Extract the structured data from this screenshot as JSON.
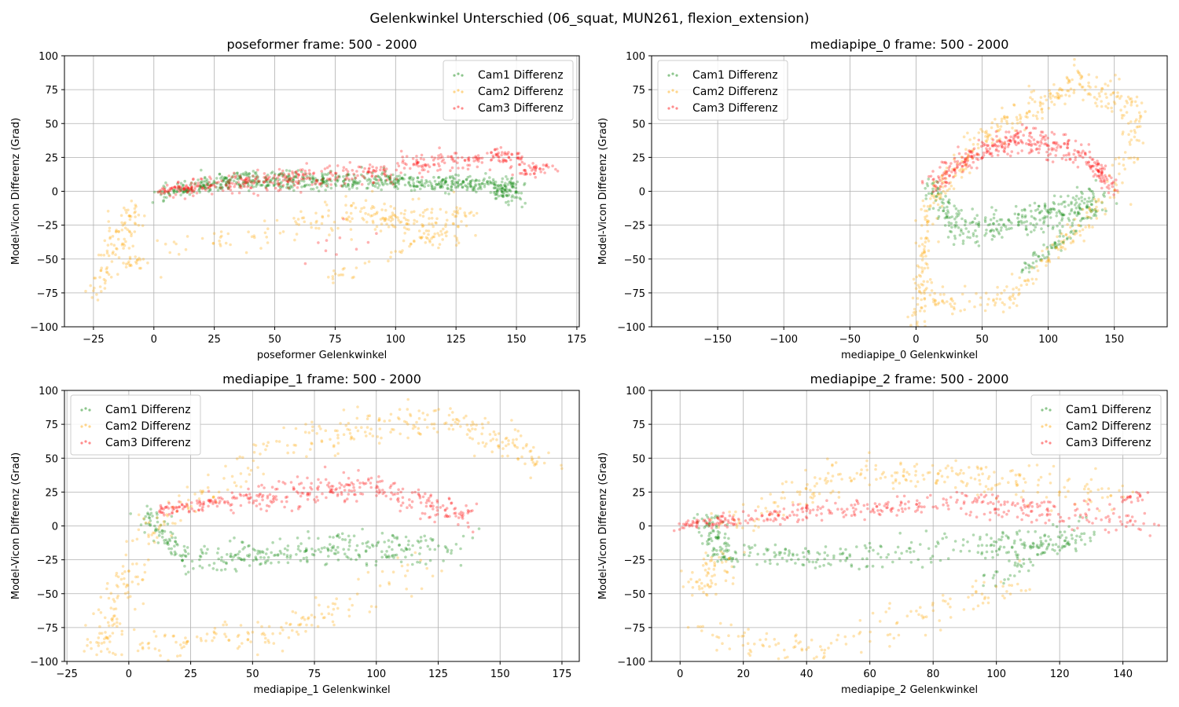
{
  "figure": {
    "suptitle": "Gelenkwinkel Unterschied (06_squat, MUN261, flexion_extension)"
  },
  "chart_data": [
    {
      "type": "scatter",
      "title": "poseformer frame: 500 - 2000",
      "xlabel": "poseformer Gelenkwinkel",
      "ylabel": "Model-Vicon Differenz (Grad)",
      "xlim": [
        -37,
        176
      ],
      "ylim": [
        -100,
        100
      ],
      "xticks": [
        -25,
        0,
        25,
        50,
        75,
        100,
        125,
        150,
        175
      ],
      "yticks": [
        -100,
        -75,
        -50,
        -25,
        0,
        25,
        50,
        75,
        100
      ],
      "grid": true,
      "legend": "top-right",
      "series": [
        {
          "name": "Cam1 Differenz",
          "color": "#008000",
          "segments": [
            {
              "from": [
                2,
                -1
              ],
              "to": [
                40,
                10
              ],
              "spread": 3,
              "n": 160
            },
            {
              "from": [
                40,
                10
              ],
              "to": [
                100,
                8
              ],
              "spread": 3,
              "n": 200
            },
            {
              "from": [
                100,
                8
              ],
              "to": [
                150,
                5
              ],
              "spread": 3,
              "n": 180
            },
            {
              "from": [
                140,
                2
              ],
              "to": [
                150,
                -3
              ],
              "spread": 3,
              "n": 60
            },
            {
              "from": [
                20,
                5
              ],
              "to": [
                130,
                3
              ],
              "spread": 2,
              "n": 120
            }
          ]
        },
        {
          "name": "Cam2 Differenz",
          "color": "#ffa500",
          "segments": [
            {
              "from": [
                -26,
                -78
              ],
              "to": [
                -15,
                -40
              ],
              "spread": 4,
              "n": 40
            },
            {
              "from": [
                -15,
                -40
              ],
              "to": [
                -8,
                -10
              ],
              "spread": 5,
              "n": 60
            },
            {
              "from": [
                -15,
                -55
              ],
              "to": [
                -5,
                -50
              ],
              "spread": 3,
              "n": 20
            },
            {
              "from": [
                5,
                -45
              ],
              "to": [
                60,
                -25
              ],
              "spread": 5,
              "n": 40
            },
            {
              "from": [
                60,
                -20
              ],
              "to": [
                130,
                -20
              ],
              "spread": 6,
              "n": 140
            },
            {
              "from": [
                72,
                -65
              ],
              "to": [
                120,
                -30
              ],
              "spread": 3,
              "n": 40
            },
            {
              "from": [
                90,
                -15
              ],
              "to": [
                125,
                -40
              ],
              "spread": 4,
              "n": 50
            }
          ]
        },
        {
          "name": "Cam3 Differenz",
          "color": "#ff0000",
          "segments": [
            {
              "from": [
                3,
                0
              ],
              "to": [
                40,
                7
              ],
              "spread": 3,
              "n": 140
            },
            {
              "from": [
                40,
                7
              ],
              "to": [
                100,
                15
              ],
              "spread": 4,
              "n": 180
            },
            {
              "from": [
                100,
                20
              ],
              "to": [
                150,
                25
              ],
              "spread": 4,
              "n": 120
            },
            {
              "from": [
                140,
                27
              ],
              "to": [
                152,
                27
              ],
              "spread": 2,
              "n": 30
            },
            {
              "from": [
                150,
                14
              ],
              "to": [
                166,
                18
              ],
              "spread": 2,
              "n": 40
            },
            {
              "from": [
                60,
                -40
              ],
              "to": [
                100,
                -30
              ],
              "spread": 10,
              "n": 10
            }
          ]
        }
      ]
    },
    {
      "type": "scatter",
      "title": "mediapipe_0 frame: 500 - 2000",
      "xlabel": "mediapipe_0 Gelenkwinkel",
      "ylabel": "Model-Vicon Differenz (Grad)",
      "xlim": [
        -200,
        190
      ],
      "ylim": [
        -100,
        100
      ],
      "xticks": [
        -150,
        -100,
        -50,
        0,
        50,
        100,
        150
      ],
      "yticks": [
        -100,
        -75,
        -50,
        -25,
        0,
        25,
        50,
        75,
        100
      ],
      "grid": true,
      "legend": "top-left",
      "series": [
        {
          "name": "Cam1 Differenz",
          "color": "#008000",
          "segments": [
            {
              "from": [
                10,
                5
              ],
              "to": [
                30,
                -30
              ],
              "spread": 5,
              "n": 70
            },
            {
              "from": [
                30,
                -30
              ],
              "to": [
                90,
                -20
              ],
              "spread": 6,
              "n": 120
            },
            {
              "from": [
                90,
                -20
              ],
              "to": [
                140,
                -5
              ],
              "spread": 6,
              "n": 120
            },
            {
              "from": [
                80,
                -60
              ],
              "to": [
                140,
                -10
              ],
              "spread": 3,
              "n": 80
            }
          ]
        },
        {
          "name": "Cam2 Differenz",
          "color": "#ffa500",
          "segments": [
            {
              "from": [
                0,
                -100
              ],
              "to": [
                10,
                -10
              ],
              "spread": 4,
              "n": 90
            },
            {
              "from": [
                10,
                -10
              ],
              "to": [
                50,
                40
              ],
              "spread": 5,
              "n": 80
            },
            {
              "from": [
                50,
                40
              ],
              "to": [
                120,
                80
              ],
              "spread": 5,
              "n": 110
            },
            {
              "from": [
                120,
                85
              ],
              "to": [
                170,
                60
              ],
              "spread": 6,
              "n": 80
            },
            {
              "from": [
                170,
                55
              ],
              "to": [
                150,
                0
              ],
              "spread": 6,
              "n": 50
            },
            {
              "from": [
                5,
                -80
              ],
              "to": [
                70,
                -80
              ],
              "spread": 5,
              "n": 60
            },
            {
              "from": [
                70,
                -80
              ],
              "to": [
                140,
                -10
              ],
              "spread": 5,
              "n": 90
            }
          ]
        },
        {
          "name": "Cam3 Differenz",
          "color": "#ff0000",
          "segments": [
            {
              "from": [
                12,
                5
              ],
              "to": [
                40,
                25
              ],
              "spread": 4,
              "n": 80
            },
            {
              "from": [
                40,
                25
              ],
              "to": [
                80,
                40
              ],
              "spread": 4,
              "n": 110
            },
            {
              "from": [
                80,
                40
              ],
              "to": [
                130,
                25
              ],
              "spread": 5,
              "n": 110
            },
            {
              "from": [
                130,
                25
              ],
              "to": [
                150,
                2
              ],
              "spread": 3,
              "n": 70
            }
          ]
        }
      ]
    },
    {
      "type": "scatter",
      "title": "mediapipe_1 frame: 500 - 2000",
      "xlabel": "mediapipe_1 Gelenkwinkel",
      "ylabel": "Model-Vicon Differenz (Grad)",
      "xlim": [
        -26,
        182
      ],
      "ylim": [
        -100,
        100
      ],
      "xticks": [
        -25,
        0,
        25,
        50,
        75,
        100,
        125,
        150,
        175
      ],
      "yticks": [
        -100,
        -75,
        -50,
        -25,
        0,
        25,
        50,
        75,
        100
      ],
      "grid": true,
      "legend": "top-left",
      "series": [
        {
          "name": "Cam1 Differenz",
          "color": "#008000",
          "segments": [
            {
              "from": [
                7,
                6
              ],
              "to": [
                25,
                -25
              ],
              "spread": 4,
              "n": 80
            },
            {
              "from": [
                25,
                -25
              ],
              "to": [
                75,
                -18
              ],
              "spread": 5,
              "n": 120
            },
            {
              "from": [
                75,
                -18
              ],
              "to": [
                135,
                -15
              ],
              "spread": 6,
              "n": 140
            }
          ]
        },
        {
          "name": "Cam2 Differenz",
          "color": "#ffa500",
          "segments": [
            {
              "from": [
                -12,
                -95
              ],
              "to": [
                0,
                -30
              ],
              "spread": 5,
              "n": 90
            },
            {
              "from": [
                5,
                -10
              ],
              "to": [
                60,
                60
              ],
              "spread": 6,
              "n": 80
            },
            {
              "from": [
                60,
                60
              ],
              "to": [
                130,
                80
              ],
              "spread": 7,
              "n": 110
            },
            {
              "from": [
                130,
                80
              ],
              "to": [
                170,
                45
              ],
              "spread": 6,
              "n": 90
            },
            {
              "from": [
                -10,
                -90
              ],
              "to": [
                60,
                -80
              ],
              "spread": 6,
              "n": 80
            },
            {
              "from": [
                60,
                -80
              ],
              "to": [
                120,
                -30
              ],
              "spread": 6,
              "n": 70
            }
          ]
        },
        {
          "name": "Cam3 Differenz",
          "color": "#ff0000",
          "segments": [
            {
              "from": [
                12,
                12
              ],
              "to": [
                50,
                20
              ],
              "spread": 3,
              "n": 100
            },
            {
              "from": [
                50,
                20
              ],
              "to": [
                100,
                30
              ],
              "spread": 5,
              "n": 140
            },
            {
              "from": [
                100,
                30
              ],
              "to": [
                140,
                5
              ],
              "spread": 5,
              "n": 110
            }
          ]
        }
      ]
    },
    {
      "type": "scatter",
      "title": "mediapipe_2 frame: 500 - 2000",
      "xlabel": "mediapipe_2 Gelenkwinkel",
      "ylabel": "Model-Vicon Differenz (Grad)",
      "xlim": [
        -9,
        154
      ],
      "ylim": [
        -100,
        100
      ],
      "xticks": [
        0,
        20,
        40,
        60,
        80,
        100,
        120,
        140
      ],
      "yticks": [
        -100,
        -75,
        -50,
        -25,
        0,
        25,
        50,
        75,
        100
      ],
      "grid": true,
      "legend": "top-right",
      "series": [
        {
          "name": "Cam1 Differenz",
          "color": "#008000",
          "segments": [
            {
              "from": [
                8,
                10
              ],
              "to": [
                14,
                -25
              ],
              "spread": 3,
              "n": 80
            },
            {
              "from": [
                14,
                -20
              ],
              "to": [
                60,
                -25
              ],
              "spread": 4,
              "n": 100
            },
            {
              "from": [
                60,
                -20
              ],
              "to": [
                130,
                -10
              ],
              "spread": 5,
              "n": 140
            },
            {
              "from": [
                100,
                -40
              ],
              "to": [
                125,
                0
              ],
              "spread": 4,
              "n": 70
            }
          ]
        },
        {
          "name": "Cam2 Differenz",
          "color": "#ffa500",
          "segments": [
            {
              "from": [
                5,
                -50
              ],
              "to": [
                14,
                -20
              ],
              "spread": 5,
              "n": 60
            },
            {
              "from": [
                15,
                0
              ],
              "to": [
                55,
                40
              ],
              "spread": 5,
              "n": 80
            },
            {
              "from": [
                55,
                40
              ],
              "to": [
                100,
                35
              ],
              "spread": 6,
              "n": 90
            },
            {
              "from": [
                100,
                35
              ],
              "to": [
                140,
                20
              ],
              "spread": 7,
              "n": 70
            },
            {
              "from": [
                5,
                -80
              ],
              "to": [
                45,
                -95
              ],
              "spread": 5,
              "n": 60
            },
            {
              "from": [
                45,
                -90
              ],
              "to": [
                110,
                -40
              ],
              "spread": 6,
              "n": 80
            }
          ]
        },
        {
          "name": "Cam3 Differenz",
          "color": "#ff0000",
          "segments": [
            {
              "from": [
                0,
                0
              ],
              "to": [
                30,
                8
              ],
              "spread": 3,
              "n": 90
            },
            {
              "from": [
                30,
                8
              ],
              "to": [
                90,
                18
              ],
              "spread": 4,
              "n": 140
            },
            {
              "from": [
                90,
                18
              ],
              "to": [
                146,
                0
              ],
              "spread": 5,
              "n": 140
            },
            {
              "from": [
                140,
                20
              ],
              "to": [
                146,
                22
              ],
              "spread": 2,
              "n": 20
            }
          ]
        }
      ]
    }
  ]
}
